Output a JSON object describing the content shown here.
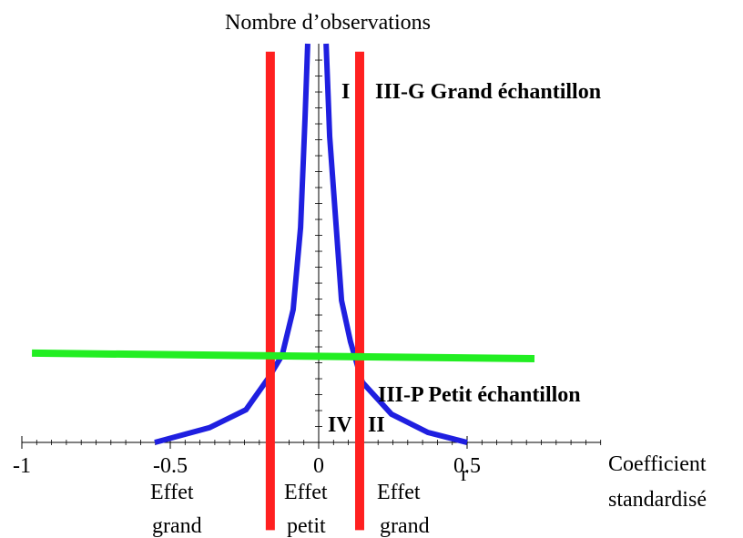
{
  "chart_data": {
    "type": "line",
    "title": "Nombre d’observations",
    "xlabel": [
      "Coefficient",
      "standardisé"
    ],
    "xlim": [
      -1,
      0.95
    ],
    "ylim": [
      -22,
      100
    ],
    "xticks": [
      -1,
      -0.5,
      0,
      0.5
    ],
    "series": [
      {
        "color": "#1f1fe0",
        "x": [
          -0.552,
          -0.368,
          -0.245,
          -0.169,
          -0.123,
          -0.086,
          -0.061,
          -0.046,
          -0.037
        ],
        "values": [
          0,
          3.7,
          8.2,
          16.2,
          21.9,
          33.3,
          53.9,
          81.3,
          100
        ]
      },
      {
        "color": "#1f1fe0",
        "x": [
          0.025,
          0.037,
          0.077,
          0.107,
          0.147,
          0.245,
          0.368,
          0.5
        ],
        "values": [
          100,
          76.7,
          35.6,
          25.3,
          15.1,
          7.1,
          2.5,
          0
        ]
      },
      {
        "color": "#ff2020",
        "x": [
          -0.163,
          -0.163
        ],
        "values": [
          98,
          -22
        ]
      },
      {
        "color": "#ff2020",
        "x": [
          0.138,
          0.138
        ],
        "values": [
          98,
          -22
        ]
      },
      {
        "color": "#22ee22",
        "x": [
          -0.966,
          0.727
        ],
        "values": [
          22.4,
          21.0
        ]
      }
    ],
    "annotations": [
      "I",
      "III-G Grand échantillon",
      "III-P Petit échantillon",
      "IV",
      "II",
      "r",
      "Effet",
      "grand",
      "Effet",
      "petit",
      "Effet",
      "grand"
    ]
  }
}
